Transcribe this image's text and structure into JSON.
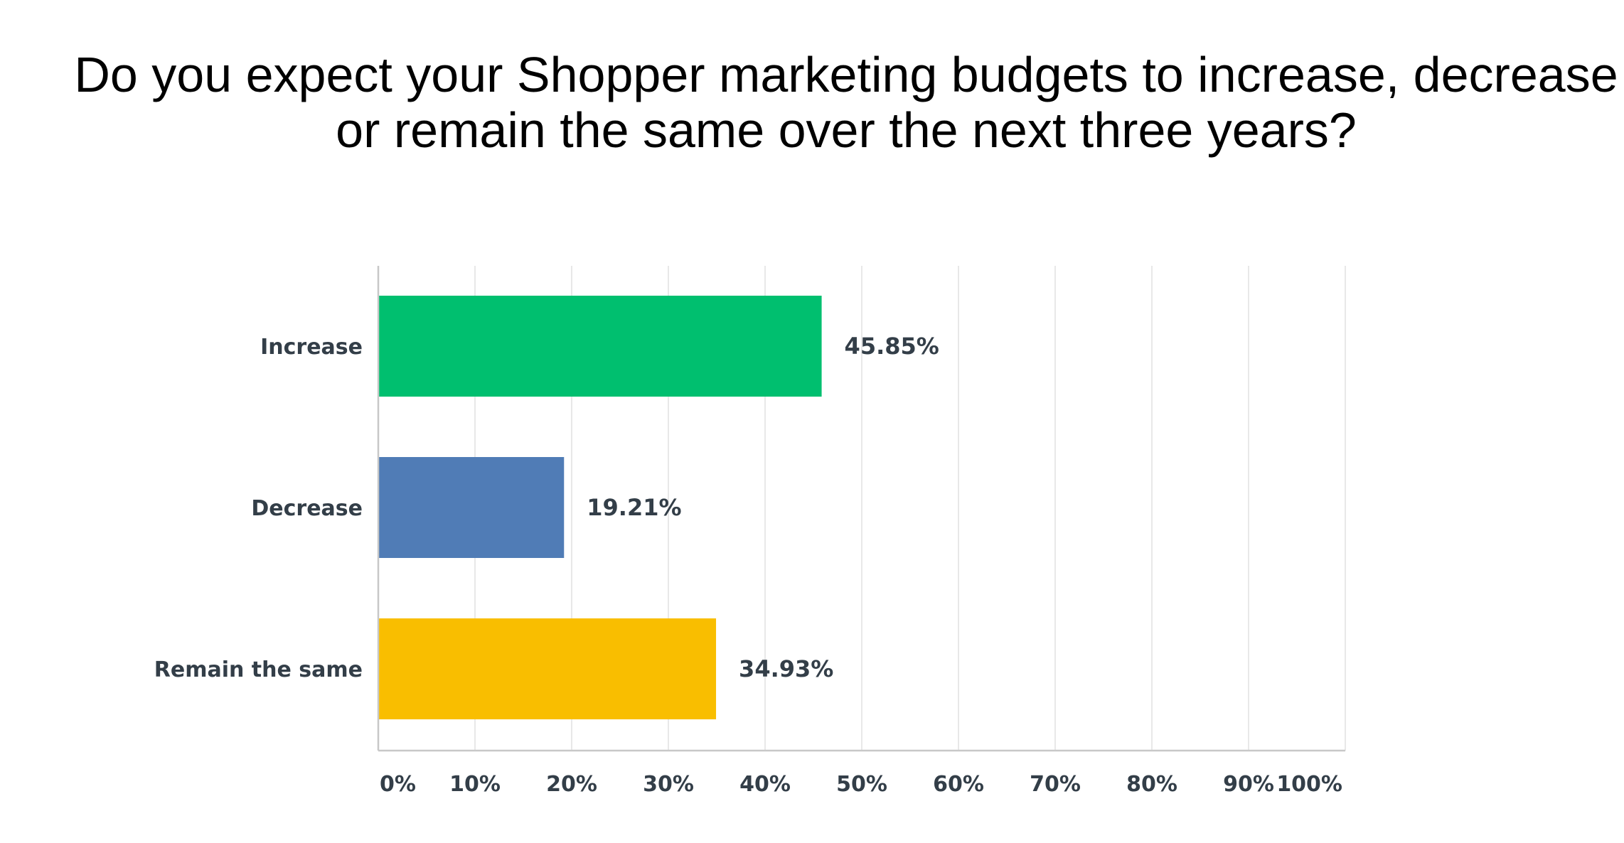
{
  "chart_data": {
    "type": "bar",
    "orientation": "horizontal",
    "title_lines": [
      "Do you expect your Shopper marketing budgets to increase, decrease",
      "or remain the same over the next three years?"
    ],
    "categories": [
      "Increase",
      "Decrease",
      "Remain the same"
    ],
    "values": [
      45.85,
      19.21,
      34.93
    ],
    "value_labels": [
      "45.85%",
      "19.21%",
      "34.93%"
    ],
    "colors": [
      "#00bf6f",
      "#507cb6",
      "#f9be00"
    ],
    "xlim": [
      0,
      100
    ],
    "xticks": [
      0,
      10,
      20,
      30,
      40,
      50,
      60,
      70,
      80,
      90,
      100
    ],
    "xtick_labels": [
      "0%",
      "10%",
      "20%",
      "30%",
      "40%",
      "50%",
      "60%",
      "70%",
      "80%",
      "90%",
      "100%"
    ],
    "grid": true,
    "gridline_color": "#e8e8e8",
    "axis_color": "#c8c8c8",
    "text_color": "#333e48",
    "legend": "none"
  }
}
